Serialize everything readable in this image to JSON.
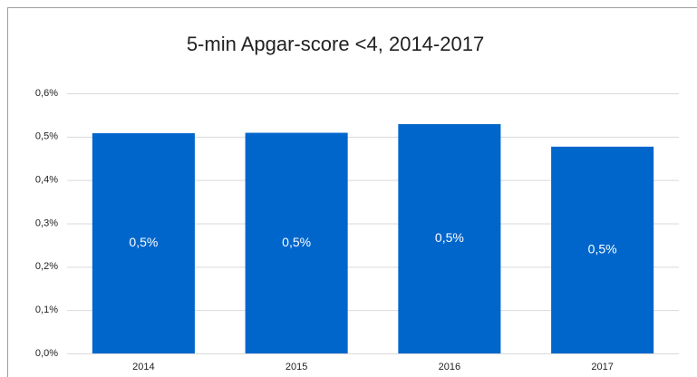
{
  "chart_data": {
    "type": "bar",
    "title": "5-min Apgar-score <4, 2014-2017",
    "categories": [
      "2014",
      "2015",
      "2016",
      "2017"
    ],
    "values": [
      0.508,
      0.509,
      0.529,
      0.477
    ],
    "value_labels": [
      "0,5%",
      "0,5%",
      "0,5%",
      "0,5%"
    ],
    "color": "#0066cc",
    "ylim": [
      0,
      0.6
    ],
    "yticks": [
      {
        "value": 0,
        "label": "0,0%"
      },
      {
        "value": 0.1,
        "label": "0,1%"
      },
      {
        "value": 0.2,
        "label": "0,2%"
      },
      {
        "value": 0.3,
        "label": "0,3%"
      },
      {
        "value": 0.4,
        "label": "0,4%"
      },
      {
        "value": 0.5,
        "label": "0,5%"
      },
      {
        "value": 0.6,
        "label": "0,6%"
      }
    ],
    "grid": true
  }
}
